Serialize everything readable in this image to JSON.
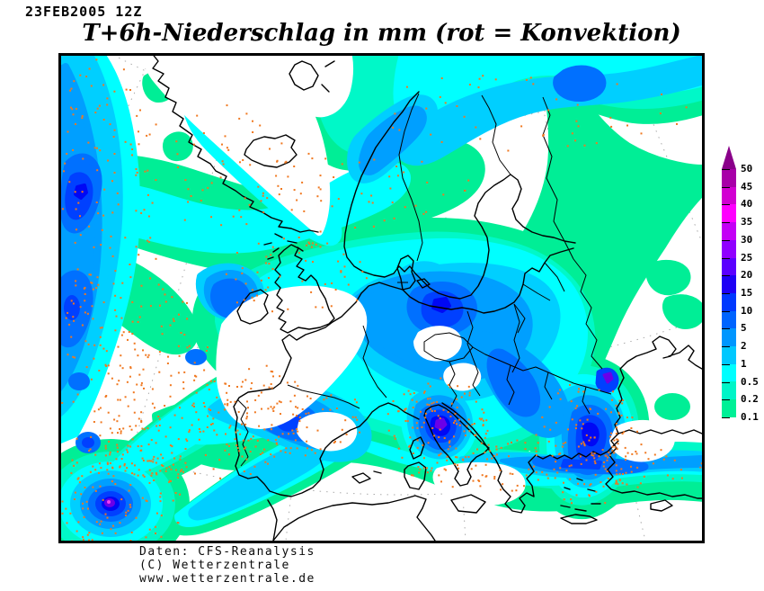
{
  "header": {
    "datestamp": "23FEB2005 12Z",
    "title": "T+6h-Niederschlag in mm (rot = Konvektion)"
  },
  "legend": {
    "values": [
      "50",
      "45",
      "40",
      "35",
      "30",
      "25",
      "20",
      "15",
      "10",
      "5",
      "2",
      "1",
      "0.5",
      "0.2",
      "0.1"
    ],
    "segment_colors": [
      "#A800A8",
      "#D200D2",
      "#FF00FF",
      "#C400F6",
      "#9000FF",
      "#5A00FF",
      "#1E00F5",
      "#0038FF",
      "#0064FF",
      "#0096FF",
      "#00C8FF",
      "#00FFFF",
      "#00F5C8",
      "#00F096"
    ],
    "arrow_color": "#8A008A"
  },
  "attribution": {
    "line1": "Daten: CFS-Reanalysis",
    "line2": "(C) Wetterzentrale",
    "line3": "www.wetterzentrale.de"
  },
  "map": {
    "convection_dot_color": "#F07820",
    "coast_color": "#000000",
    "grid_color": "#ABABAB"
  }
}
